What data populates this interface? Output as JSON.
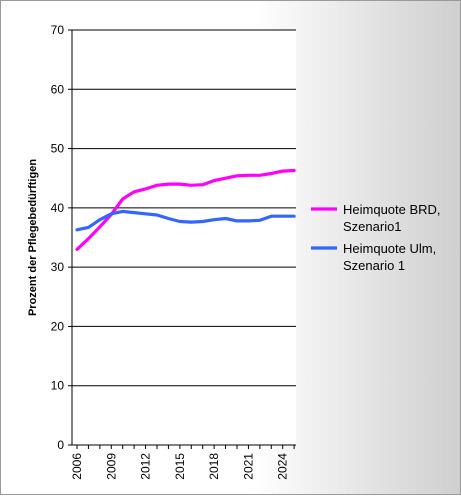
{
  "chart_data": {
    "type": "line",
    "title": "",
    "xlabel": "",
    "ylabel": "Prozent der Pflegebedürftigen",
    "xlim": [
      2006,
      2025
    ],
    "ylim": [
      0,
      70
    ],
    "x_ticks": [
      2006,
      2009,
      2012,
      2015,
      2018,
      2021,
      2024
    ],
    "y_ticks": [
      0,
      10,
      20,
      30,
      40,
      50,
      60,
      70
    ],
    "grid": "horizontal",
    "legend_position": "right",
    "x": [
      2006,
      2007,
      2008,
      2009,
      2010,
      2011,
      2012,
      2013,
      2014,
      2015,
      2016,
      2017,
      2018,
      2019,
      2020,
      2021,
      2022,
      2023,
      2024,
      2025
    ],
    "series": [
      {
        "name_lines": [
          "Heimquote BRD,",
          "Szenario1"
        ],
        "color": "#ff00ff",
        "values": [
          33.0,
          34.8,
          36.8,
          38.9,
          41.5,
          42.7,
          43.2,
          43.8,
          44.0,
          44.0,
          43.8,
          43.9,
          44.6,
          45.0,
          45.4,
          45.5,
          45.5,
          45.8,
          46.2,
          46.3
        ]
      },
      {
        "name_lines": [
          "Heimquote Ulm,",
          "Szenario 1"
        ],
        "color": "#3366ff",
        "values": [
          36.3,
          36.7,
          38.0,
          39.0,
          39.4,
          39.2,
          39.0,
          38.8,
          38.2,
          37.7,
          37.6,
          37.7,
          38.0,
          38.2,
          37.8,
          37.8,
          37.9,
          38.6,
          38.6,
          38.6
        ]
      }
    ]
  }
}
